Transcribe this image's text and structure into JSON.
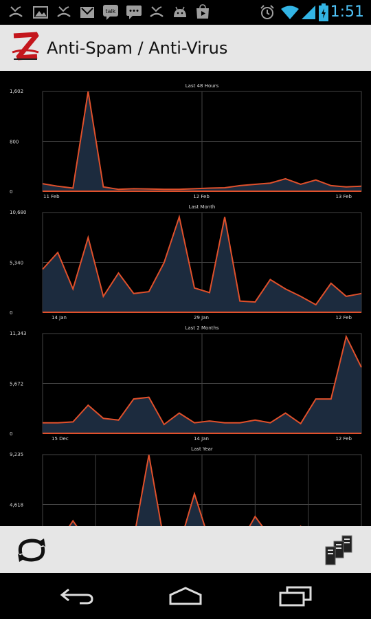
{
  "status_bar": {
    "time": "1:51",
    "notification_icons": [
      "missed-call-icon",
      "gallery-icon",
      "missed-call-icon",
      "gmail-icon",
      "talk-icon",
      "sms-icon",
      "missed-call-icon",
      "android-icon",
      "play-store-icon"
    ],
    "system_icons": [
      "alarm-icon",
      "wifi-icon",
      "signal-icon",
      "battery-icon"
    ]
  },
  "action_bar": {
    "title": "Anti-Spam / Anti-Virus"
  },
  "colors": {
    "line": "#e0502b",
    "fill": "#1c2b3e",
    "grid": "#444444",
    "axis": "#e0502b"
  },
  "chart_data": [
    {
      "type": "area",
      "title": "Last 48 Hours",
      "y_ticks": [
        "1,602",
        "800",
        "0"
      ],
      "ylim": [
        0,
        1602
      ],
      "x_tick_labels": [
        "11 Feb",
        "12 Feb",
        "13 Feb"
      ],
      "values": [
        120,
        80,
        50,
        1602,
        70,
        30,
        40,
        35,
        30,
        30,
        40,
        50,
        55,
        90,
        110,
        130,
        200,
        110,
        180,
        90,
        70,
        80
      ]
    },
    {
      "type": "area",
      "title": "Last Month",
      "y_ticks": [
        "10,680",
        "5,340",
        "0"
      ],
      "ylim": [
        0,
        10680
      ],
      "x_tick_labels": [
        "14 Jan",
        "29 Jan",
        "12 Feb"
      ],
      "values": [
        4600,
        6400,
        2500,
        8000,
        1700,
        4200,
        2000,
        2200,
        5300,
        10200,
        2600,
        2100,
        10200,
        1200,
        1100,
        3500,
        2500,
        1700,
        800,
        3100,
        1700,
        2000
      ]
    },
    {
      "type": "area",
      "title": "Last 2 Months",
      "y_ticks": [
        "11,343",
        "5,672",
        "0"
      ],
      "ylim": [
        0,
        11343
      ],
      "x_tick_labels": [
        "15 Dec",
        "14 Jan",
        "12 Feb"
      ],
      "values": [
        1200,
        1200,
        1300,
        3200,
        1700,
        1500,
        3900,
        4100,
        1000,
        2300,
        1200,
        1400,
        1200,
        1200,
        1500,
        1200,
        2300,
        1100,
        3900,
        3900,
        11000,
        7500
      ]
    },
    {
      "type": "area",
      "title": "Last Year",
      "y_ticks": [
        "9,235",
        "4,618"
      ],
      "ylim": [
        0,
        9235
      ],
      "x_tick_labels": [],
      "values": [
        1200,
        1000,
        3100,
        1100,
        1300,
        1000,
        1400,
        9200,
        1200,
        800,
        5600,
        1200,
        900,
        1000,
        3500,
        1600,
        1000,
        2600,
        900,
        700,
        1000,
        1100
      ]
    }
  ],
  "bottom_bar": {
    "refresh_icon": "refresh-icon",
    "servers_icon": "servers-icon"
  },
  "nav_bar": {
    "back_icon": "back-icon",
    "home_icon": "home-icon",
    "recents_icon": "recents-icon"
  }
}
